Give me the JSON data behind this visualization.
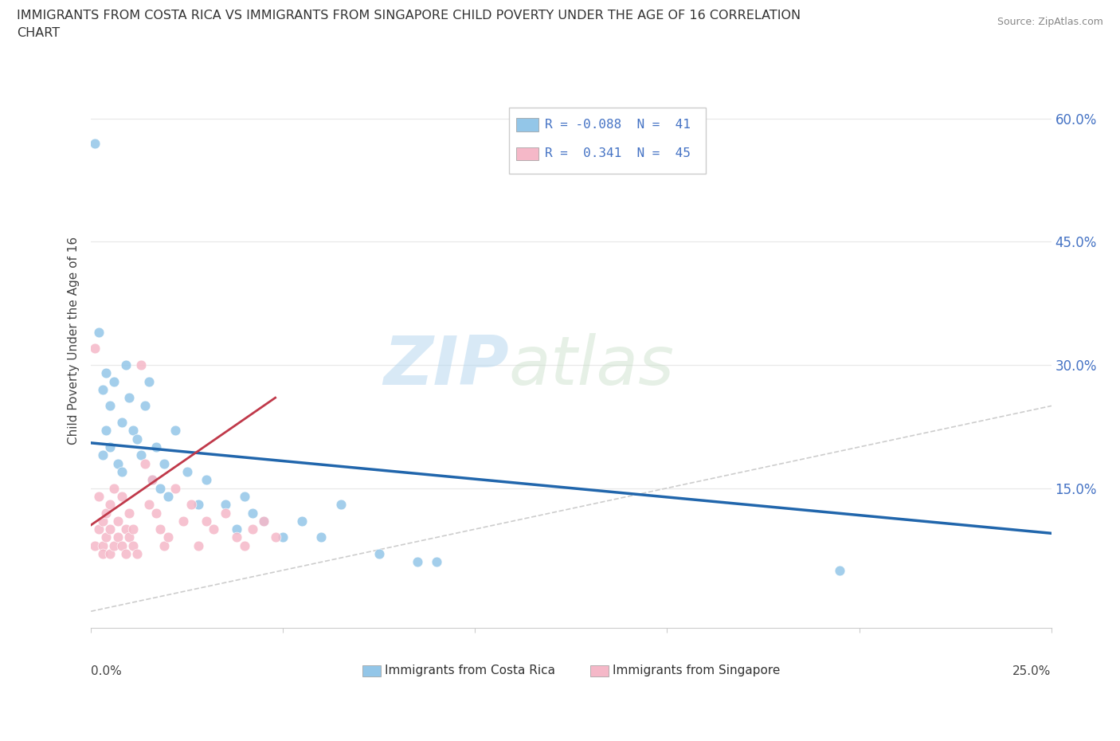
{
  "title_line1": "IMMIGRANTS FROM COSTA RICA VS IMMIGRANTS FROM SINGAPORE CHILD POVERTY UNDER THE AGE OF 16 CORRELATION",
  "title_line2": "CHART",
  "source": "Source: ZipAtlas.com",
  "ylabel": "Child Poverty Under the Age of 16",
  "ytick_vals": [
    0.15,
    0.3,
    0.45,
    0.6
  ],
  "ytick_labels": [
    "15.0%",
    "30.0%",
    "45.0%",
    "60.0%"
  ],
  "xlim": [
    0.0,
    0.25
  ],
  "ylim": [
    -0.02,
    0.68
  ],
  "watermark_zip": "ZIP",
  "watermark_atlas": "atlas",
  "legend1_label": "R = -0.088  N =  41",
  "legend2_label": "R =  0.341  N =  45",
  "color_cr": "#93c6e8",
  "color_sg": "#f5b8c8",
  "color_cr_line": "#2166ac",
  "color_sg_line": "#c0394a",
  "color_diag": "#c8c8c8",
  "background": "#ffffff",
  "grid_color": "#e8e8e8",
  "cr_trend_x": [
    0.0,
    0.25
  ],
  "cr_trend_y": [
    0.205,
    0.095
  ],
  "sg_trend_x": [
    0.0,
    0.048
  ],
  "sg_trend_y": [
    0.105,
    0.26
  ],
  "legend_label_cr": "Immigrants from Costa Rica",
  "legend_label_sg": "Immigrants from Singapore",
  "cr_x": [
    0.001,
    0.002,
    0.003,
    0.003,
    0.004,
    0.004,
    0.005,
    0.005,
    0.006,
    0.007,
    0.008,
    0.008,
    0.009,
    0.01,
    0.011,
    0.012,
    0.013,
    0.014,
    0.015,
    0.016,
    0.017,
    0.018,
    0.019,
    0.02,
    0.022,
    0.025,
    0.028,
    0.03,
    0.035,
    0.038,
    0.04,
    0.042,
    0.045,
    0.05,
    0.055,
    0.06,
    0.065,
    0.075,
    0.085,
    0.09,
    0.195
  ],
  "cr_y": [
    0.57,
    0.34,
    0.27,
    0.19,
    0.22,
    0.29,
    0.2,
    0.25,
    0.28,
    0.18,
    0.23,
    0.17,
    0.3,
    0.26,
    0.22,
    0.21,
    0.19,
    0.25,
    0.28,
    0.16,
    0.2,
    0.15,
    0.18,
    0.14,
    0.22,
    0.17,
    0.13,
    0.16,
    0.13,
    0.1,
    0.14,
    0.12,
    0.11,
    0.09,
    0.11,
    0.09,
    0.13,
    0.07,
    0.06,
    0.06,
    0.05
  ],
  "sg_x": [
    0.001,
    0.001,
    0.002,
    0.002,
    0.003,
    0.003,
    0.003,
    0.004,
    0.004,
    0.005,
    0.005,
    0.005,
    0.006,
    0.006,
    0.007,
    0.007,
    0.008,
    0.008,
    0.009,
    0.009,
    0.01,
    0.01,
    0.011,
    0.011,
    0.012,
    0.013,
    0.014,
    0.015,
    0.016,
    0.017,
    0.018,
    0.019,
    0.02,
    0.022,
    0.024,
    0.026,
    0.028,
    0.03,
    0.032,
    0.035,
    0.038,
    0.04,
    0.042,
    0.045,
    0.048
  ],
  "sg_y": [
    0.32,
    0.08,
    0.1,
    0.14,
    0.08,
    0.11,
    0.07,
    0.09,
    0.12,
    0.07,
    0.1,
    0.13,
    0.08,
    0.15,
    0.09,
    0.11,
    0.08,
    0.14,
    0.1,
    0.07,
    0.09,
    0.12,
    0.08,
    0.1,
    0.07,
    0.3,
    0.18,
    0.13,
    0.16,
    0.12,
    0.1,
    0.08,
    0.09,
    0.15,
    0.11,
    0.13,
    0.08,
    0.11,
    0.1,
    0.12,
    0.09,
    0.08,
    0.1,
    0.11,
    0.09
  ]
}
